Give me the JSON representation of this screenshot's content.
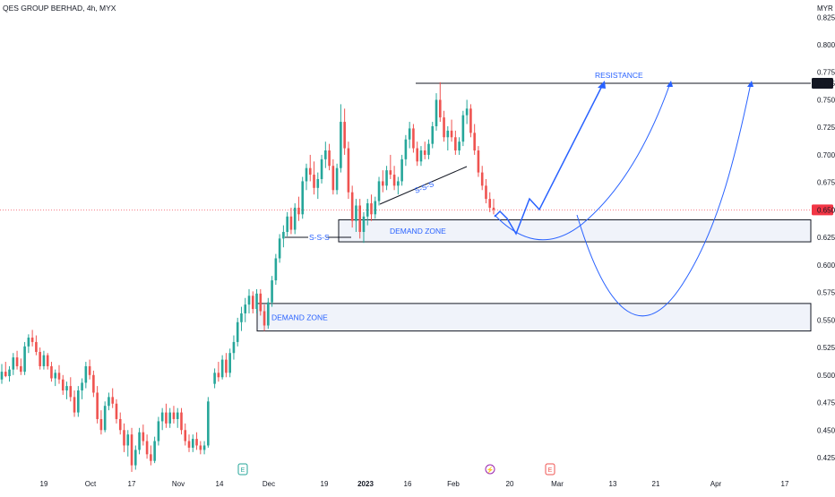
{
  "chart_data": {
    "type": "candlestick",
    "title": "QES GROUP BERHAD, 4h, MYX",
    "currency": "MYR",
    "ylim": [
      0.415,
      0.835
    ],
    "y_ticks": [
      "0.825",
      "0.800",
      "0.775",
      "0.750",
      "0.725",
      "0.700",
      "0.675",
      "0.650",
      "0.625",
      "0.600",
      "0.575",
      "0.550",
      "0.525",
      "0.500",
      "0.475",
      "0.450",
      "0.425"
    ],
    "x_ticks": [
      "19",
      "Oct",
      "17",
      "Nov",
      "14",
      "Dec",
      "19",
      "2023",
      "16",
      "Feb",
      "20",
      "Mar",
      "13",
      "21",
      "Apr",
      "17"
    ],
    "price_badges": [
      {
        "value": 0.765,
        "label": "0.765",
        "bg": "#131722"
      },
      {
        "value": 0.65,
        "label": "0.650",
        "bg": "#f23645"
      }
    ],
    "annotations": {
      "resistance": {
        "label": "RESISTANCE",
        "price": 0.765
      },
      "demand_zones": [
        {
          "label": "DEMAND ZONE",
          "top": 0.641,
          "bottom": 0.621
        },
        {
          "label": "DEMAND ZONE",
          "top": 0.565,
          "bottom": 0.54
        }
      ],
      "sss_labels": [
        "S-S-S",
        "S-S-S"
      ]
    },
    "event_markers": [
      "E",
      "⚡",
      "E"
    ],
    "colors": {
      "up": "#26a69a",
      "down": "#ef5350",
      "drawing": "#2962ff",
      "zone_fill": "#f0f3fa",
      "current_price_line": "#f23645"
    },
    "candles": [
      [
        0.496,
        0.51,
        0.492,
        0.503
      ],
      [
        0.503,
        0.512,
        0.498,
        0.499
      ],
      [
        0.499,
        0.508,
        0.494,
        0.505
      ],
      [
        0.505,
        0.52,
        0.5,
        0.516
      ],
      [
        0.516,
        0.522,
        0.505,
        0.508
      ],
      [
        0.508,
        0.515,
        0.5,
        0.503
      ],
      [
        0.503,
        0.53,
        0.5,
        0.526
      ],
      [
        0.526,
        0.537,
        0.52,
        0.534
      ],
      [
        0.534,
        0.541,
        0.526,
        0.53
      ],
      [
        0.53,
        0.536,
        0.518,
        0.521
      ],
      [
        0.521,
        0.525,
        0.505,
        0.508
      ],
      [
        0.508,
        0.522,
        0.505,
        0.518
      ],
      [
        0.518,
        0.52,
        0.505,
        0.508
      ],
      [
        0.508,
        0.512,
        0.494,
        0.497
      ],
      [
        0.497,
        0.505,
        0.49,
        0.502
      ],
      [
        0.502,
        0.509,
        0.492,
        0.496
      ],
      [
        0.496,
        0.5,
        0.482,
        0.486
      ],
      [
        0.486,
        0.494,
        0.478,
        0.49
      ],
      [
        0.49,
        0.498,
        0.476,
        0.48
      ],
      [
        0.48,
        0.486,
        0.462,
        0.466
      ],
      [
        0.466,
        0.49,
        0.462,
        0.486
      ],
      [
        0.486,
        0.497,
        0.478,
        0.493
      ],
      [
        0.493,
        0.512,
        0.488,
        0.508
      ],
      [
        0.508,
        0.514,
        0.496,
        0.5
      ],
      [
        0.5,
        0.504,
        0.48,
        0.484
      ],
      [
        0.484,
        0.49,
        0.456,
        0.46
      ],
      [
        0.46,
        0.468,
        0.446,
        0.45
      ],
      [
        0.45,
        0.476,
        0.448,
        0.472
      ],
      [
        0.472,
        0.484,
        0.468,
        0.48
      ],
      [
        0.48,
        0.488,
        0.47,
        0.474
      ],
      [
        0.474,
        0.478,
        0.456,
        0.46
      ],
      [
        0.46,
        0.466,
        0.446,
        0.45
      ],
      [
        0.45,
        0.456,
        0.43,
        0.436
      ],
      [
        0.436,
        0.45,
        0.426,
        0.446
      ],
      [
        0.446,
        0.452,
        0.412,
        0.418
      ],
      [
        0.418,
        0.436,
        0.414,
        0.432
      ],
      [
        0.432,
        0.452,
        0.428,
        0.448
      ],
      [
        0.448,
        0.455,
        0.436,
        0.44
      ],
      [
        0.44,
        0.446,
        0.424,
        0.428
      ],
      [
        0.428,
        0.436,
        0.418,
        0.422
      ],
      [
        0.422,
        0.444,
        0.42,
        0.44
      ],
      [
        0.44,
        0.462,
        0.436,
        0.458
      ],
      [
        0.458,
        0.47,
        0.45,
        0.466
      ],
      [
        0.466,
        0.474,
        0.452,
        0.456
      ],
      [
        0.456,
        0.47,
        0.452,
        0.466
      ],
      [
        0.466,
        0.472,
        0.456,
        0.46
      ],
      [
        0.46,
        0.47,
        0.452,
        0.466
      ],
      [
        0.466,
        0.47,
        0.446,
        0.45
      ],
      [
        0.45,
        0.456,
        0.436,
        0.44
      ],
      [
        0.44,
        0.446,
        0.43,
        0.434
      ],
      [
        0.434,
        0.446,
        0.43,
        0.442
      ],
      [
        0.442,
        0.448,
        0.432,
        0.436
      ],
      [
        0.436,
        0.44,
        0.428,
        0.432
      ],
      [
        0.432,
        0.44,
        0.428,
        0.436
      ],
      [
        0.436,
        0.48,
        0.434,
        0.476
      ],
      [
        0.492,
        0.506,
        0.488,
        0.502
      ],
      [
        0.502,
        0.512,
        0.494,
        0.498
      ],
      [
        0.498,
        0.518,
        0.496,
        0.514
      ],
      [
        0.514,
        0.52,
        0.498,
        0.502
      ],
      [
        0.502,
        0.524,
        0.498,
        0.52
      ],
      [
        0.52,
        0.536,
        0.514,
        0.53
      ],
      [
        0.53,
        0.552,
        0.526,
        0.548
      ],
      [
        0.548,
        0.562,
        0.54,
        0.556
      ],
      [
        0.556,
        0.57,
        0.548,
        0.564
      ],
      [
        0.564,
        0.578,
        0.556,
        0.572
      ],
      [
        0.572,
        0.576,
        0.556,
        0.56
      ],
      [
        0.56,
        0.578,
        0.556,
        0.574
      ],
      [
        0.574,
        0.578,
        0.554,
        0.558
      ],
      [
        0.558,
        0.564,
        0.54,
        0.545
      ],
      [
        0.545,
        0.57,
        0.542,
        0.566
      ],
      [
        0.566,
        0.59,
        0.562,
        0.586
      ],
      [
        0.586,
        0.61,
        0.582,
        0.606
      ],
      [
        0.606,
        0.628,
        0.602,
        0.624
      ],
      [
        0.624,
        0.636,
        0.616,
        0.63
      ],
      [
        0.63,
        0.648,
        0.626,
        0.644
      ],
      [
        0.644,
        0.652,
        0.628,
        0.632
      ],
      [
        0.632,
        0.656,
        0.628,
        0.652
      ],
      [
        0.652,
        0.662,
        0.64,
        0.646
      ],
      [
        0.646,
        0.68,
        0.642,
        0.676
      ],
      [
        0.676,
        0.692,
        0.668,
        0.688
      ],
      [
        0.688,
        0.7,
        0.676,
        0.682
      ],
      [
        0.682,
        0.694,
        0.664,
        0.67
      ],
      [
        0.67,
        0.684,
        0.66,
        0.678
      ],
      [
        0.678,
        0.7,
        0.674,
        0.696
      ],
      [
        0.696,
        0.712,
        0.688,
        0.704
      ],
      [
        0.704,
        0.71,
        0.686,
        0.69
      ],
      [
        0.69,
        0.696,
        0.664,
        0.668
      ],
      [
        0.668,
        0.692,
        0.664,
        0.688
      ],
      [
        0.688,
        0.746,
        0.684,
        0.73
      ],
      [
        0.73,
        0.742,
        0.7,
        0.706
      ],
      [
        0.706,
        0.712,
        0.66,
        0.666
      ],
      [
        0.666,
        0.672,
        0.634,
        0.64
      ],
      [
        0.64,
        0.66,
        0.63,
        0.654
      ],
      [
        0.654,
        0.66,
        0.624,
        0.63
      ],
      [
        0.63,
        0.648,
        0.62,
        0.644
      ],
      [
        0.644,
        0.66,
        0.636,
        0.656
      ],
      [
        0.656,
        0.664,
        0.64,
        0.646
      ],
      [
        0.646,
        0.662,
        0.642,
        0.658
      ],
      [
        0.658,
        0.68,
        0.654,
        0.676
      ],
      [
        0.676,
        0.686,
        0.666,
        0.672
      ],
      [
        0.672,
        0.69,
        0.668,
        0.686
      ],
      [
        0.686,
        0.7,
        0.678,
        0.682
      ],
      [
        0.682,
        0.69,
        0.668,
        0.672
      ],
      [
        0.672,
        0.68,
        0.664,
        0.676
      ],
      [
        0.676,
        0.7,
        0.672,
        0.696
      ],
      [
        0.696,
        0.718,
        0.69,
        0.714
      ],
      [
        0.714,
        0.73,
        0.706,
        0.724
      ],
      [
        0.724,
        0.728,
        0.702,
        0.706
      ],
      [
        0.706,
        0.712,
        0.69,
        0.694
      ],
      [
        0.694,
        0.708,
        0.69,
        0.704
      ],
      [
        0.704,
        0.712,
        0.696,
        0.7
      ],
      [
        0.7,
        0.714,
        0.696,
        0.71
      ],
      [
        0.71,
        0.73,
        0.706,
        0.726
      ],
      [
        0.726,
        0.756,
        0.722,
        0.75
      ],
      [
        0.75,
        0.766,
        0.73,
        0.734
      ],
      [
        0.734,
        0.74,
        0.712,
        0.716
      ],
      [
        0.716,
        0.726,
        0.704,
        0.722
      ],
      [
        0.722,
        0.732,
        0.712,
        0.716
      ],
      [
        0.716,
        0.722,
        0.7,
        0.704
      ],
      [
        0.704,
        0.716,
        0.7,
        0.712
      ],
      [
        0.712,
        0.74,
        0.708,
        0.736
      ],
      [
        0.736,
        0.75,
        0.728,
        0.742
      ],
      [
        0.742,
        0.746,
        0.716,
        0.72
      ],
      [
        0.72,
        0.728,
        0.7,
        0.704
      ],
      [
        0.704,
        0.708,
        0.68,
        0.684
      ],
      [
        0.684,
        0.69,
        0.668,
        0.672
      ],
      [
        0.672,
        0.678,
        0.656,
        0.66
      ],
      [
        0.66,
        0.666,
        0.648,
        0.652
      ],
      [
        0.652,
        0.66,
        0.646,
        0.65
      ]
    ]
  }
}
